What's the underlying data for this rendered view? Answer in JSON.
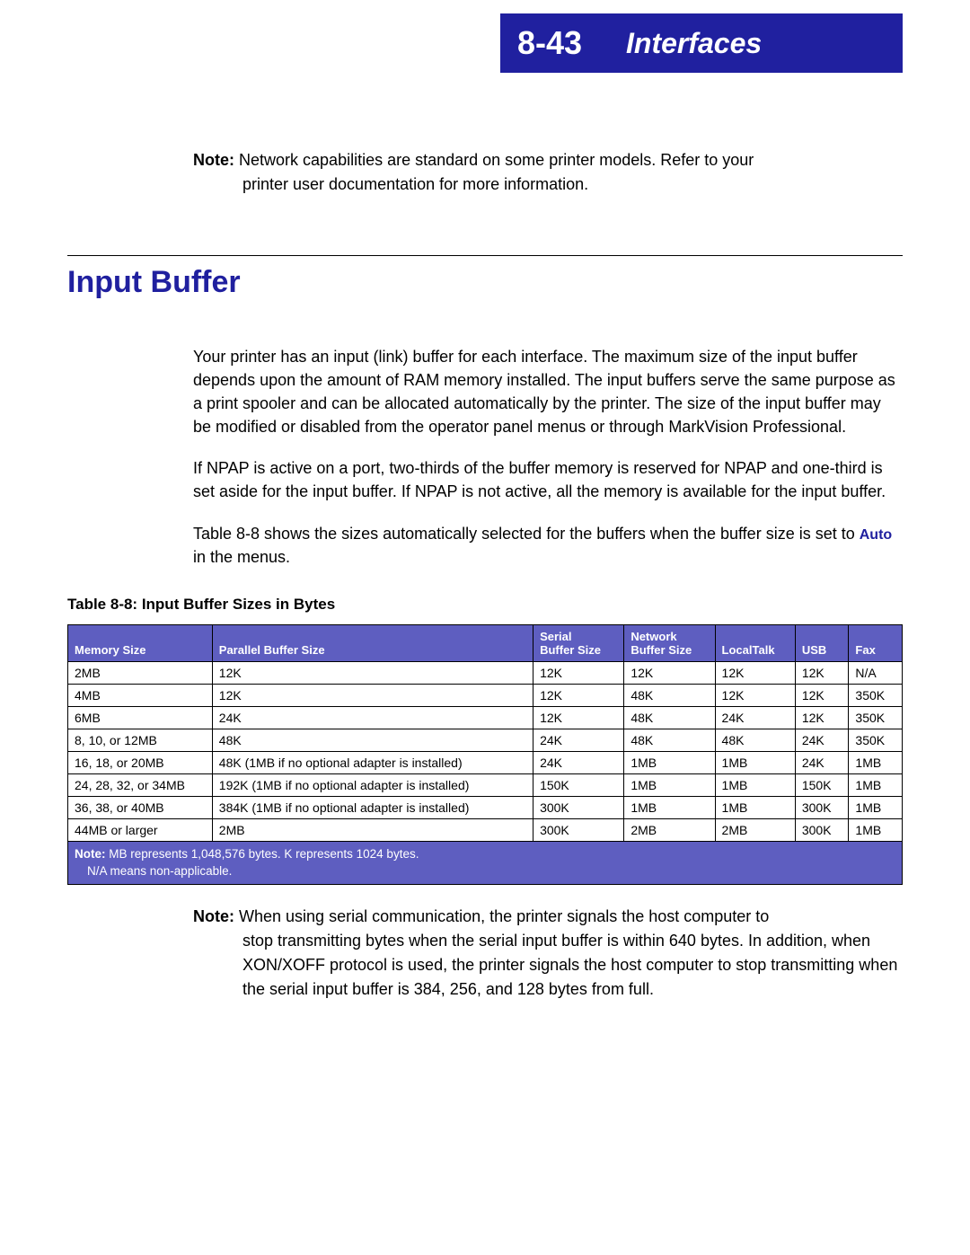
{
  "header": {
    "chapter_number": "8-43",
    "chapter_title": "Interfaces"
  },
  "top_note": {
    "label": "Note:",
    "line1": "Network capabilities are standard on some printer models. Refer to your",
    "line2": "printer user documentation for more information."
  },
  "section_heading": "Input Buffer",
  "paragraphs": {
    "p1": "Your printer has an input (link) buffer for each interface. The maximum size of the input buffer depends upon the amount of RAM memory installed. The input buffers serve the same purpose as a print spooler and can be allocated automatically by the printer. The size of the input buffer may be modified or disabled from the operator panel menus or through MarkVision Professional.",
    "p2": "If NPAP is active on a port, two-thirds of the buffer memory is reserved for NPAP and one-third is set aside for the input buffer. If NPAP is not active, all the memory is available for the input buffer.",
    "p3_pre": "Table 8-8 shows the sizes automatically selected for the buffers when the buffer size is set to ",
    "p3_auto": "Auto",
    "p3_post": " in the menus."
  },
  "table": {
    "caption": "Table 8-8:  Input Buffer Sizes in Bytes",
    "columns": {
      "memory": "Memory Size",
      "parallel": "Parallel Buffer Size",
      "serial_l1": "Serial",
      "serial_l2": "Buffer Size",
      "network_l1": "Network",
      "network_l2": "Buffer Size",
      "localtalk": "LocalTalk",
      "usb": "USB",
      "fax": "Fax"
    },
    "rows": [
      {
        "memory": "2MB",
        "parallel": "12K",
        "serial": "12K",
        "network": "12K",
        "localtalk": "12K",
        "usb": "12K",
        "fax": "N/A"
      },
      {
        "memory": "4MB",
        "parallel": "12K",
        "serial": "12K",
        "network": "48K",
        "localtalk": "12K",
        "usb": "12K",
        "fax": "350K"
      },
      {
        "memory": "6MB",
        "parallel": "24K",
        "serial": "12K",
        "network": "48K",
        "localtalk": "24K",
        "usb": "12K",
        "fax": "350K"
      },
      {
        "memory": "8, 10, or 12MB",
        "parallel": "48K",
        "serial": "24K",
        "network": "48K",
        "localtalk": "48K",
        "usb": "24K",
        "fax": "350K"
      },
      {
        "memory": "16, 18, or 20MB",
        "parallel": "48K (1MB if no optional adapter is installed)",
        "serial": "24K",
        "network": "1MB",
        "localtalk": "1MB",
        "usb": "24K",
        "fax": "1MB"
      },
      {
        "memory": "24, 28, 32, or 34MB",
        "parallel": "192K (1MB if no optional adapter is installed)",
        "serial": "150K",
        "network": "1MB",
        "localtalk": "1MB",
        "usb": "150K",
        "fax": "1MB"
      },
      {
        "memory": "36, 38, or 40MB",
        "parallel": "384K (1MB if no optional adapter is installed)",
        "serial": "300K",
        "network": "1MB",
        "localtalk": "1MB",
        "usb": "300K",
        "fax": "1MB"
      },
      {
        "memory": "44MB or larger",
        "parallel": "2MB",
        "serial": "300K",
        "network": "2MB",
        "localtalk": "2MB",
        "usb": "300K",
        "fax": "1MB"
      }
    ],
    "footnote": {
      "label": "Note:",
      "line1": " MB represents 1,048,576 bytes. K represents 1024 bytes.",
      "line2": "N/A means non-applicable."
    }
  },
  "bottom_note": {
    "label": "Note:",
    "line1": "When using serial communication, the printer signals the host computer to",
    "rest": "stop transmitting bytes when the serial input buffer is within 640 bytes. In addition, when XON/XOFF protocol is used, the printer signals the host computer to stop transmitting when the serial input buffer is 384, 256, and 128 bytes from full."
  },
  "colors": {
    "brand_blue": "#20209f",
    "table_header_bg": "#5e5ec0",
    "text": "#000000",
    "background": "#ffffff"
  }
}
